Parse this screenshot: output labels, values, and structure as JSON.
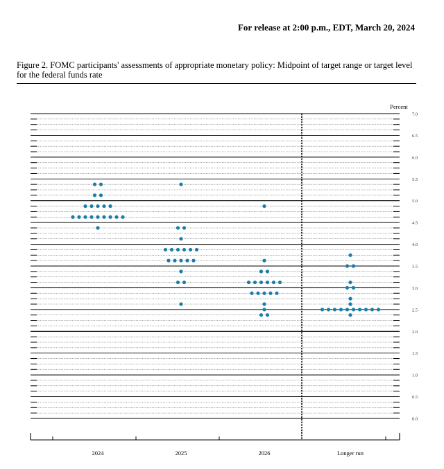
{
  "header": {
    "release_note": "For release at 2:00 p.m., EDT, March 20, 2024"
  },
  "figure": {
    "caption": "Figure 2.  FOMC participants' assessments of appropriate monetary policy: Midpoint of target range or target level for the federal funds rate"
  },
  "chart_data": {
    "type": "scatter",
    "title": "",
    "xlabel": "",
    "ylabel": "Percent",
    "ylim": [
      0,
      7
    ],
    "yticks": [
      "7.0",
      "6.5",
      "6.0",
      "5.5",
      "5.0",
      "4.5",
      "4.0",
      "3.5",
      "3.0",
      "2.5",
      "2.0",
      "1.5",
      "1.0",
      "0.5",
      "0.0"
    ],
    "categories": [
      "2024",
      "2025",
      "2026",
      "Longer run"
    ],
    "grid": true,
    "dot_color": "#1a7ea8",
    "series": [
      {
        "category": "2024",
        "dots": [
          {
            "y": 5.375,
            "count": 2
          },
          {
            "y": 5.125,
            "count": 2
          },
          {
            "y": 4.875,
            "count": 5
          },
          {
            "y": 4.625,
            "count": 9
          },
          {
            "y": 4.375,
            "count": 1
          }
        ]
      },
      {
        "category": "2025",
        "dots": [
          {
            "y": 5.375,
            "count": 1
          },
          {
            "y": 4.375,
            "count": 2
          },
          {
            "y": 4.125,
            "count": 1
          },
          {
            "y": 3.875,
            "count": 6
          },
          {
            "y": 3.625,
            "count": 5
          },
          {
            "y": 3.375,
            "count": 1
          },
          {
            "y": 3.125,
            "count": 2
          },
          {
            "y": 2.625,
            "count": 1
          }
        ]
      },
      {
        "category": "2026",
        "dots": [
          {
            "y": 4.875,
            "count": 1
          },
          {
            "y": 3.625,
            "count": 1
          },
          {
            "y": 3.375,
            "count": 2
          },
          {
            "y": 3.125,
            "count": 6
          },
          {
            "y": 2.875,
            "count": 5
          },
          {
            "y": 2.625,
            "count": 1
          },
          {
            "y": 2.5,
            "count": 1
          },
          {
            "y": 2.375,
            "count": 2
          }
        ]
      },
      {
        "category": "Longer run",
        "dots": [
          {
            "y": 3.75,
            "count": 1
          },
          {
            "y": 3.5,
            "count": 2
          },
          {
            "y": 3.125,
            "count": 1
          },
          {
            "y": 3.0,
            "count": 2
          },
          {
            "y": 2.75,
            "count": 1
          },
          {
            "y": 2.625,
            "count": 1
          },
          {
            "y": 2.5,
            "count": 10
          },
          {
            "y": 2.375,
            "count": 1
          }
        ]
      }
    ]
  }
}
